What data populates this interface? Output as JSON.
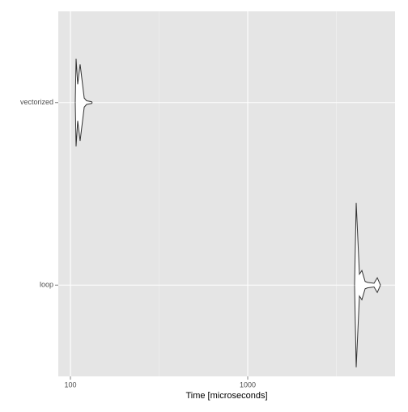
{
  "chart_data": {
    "type": "violin",
    "x_label": "Time [microseconds]",
    "log_x": true,
    "categories": [
      "vectorized",
      "loop"
    ],
    "xlim": [
      85.4,
      6776
    ],
    "xticks": [
      100,
      1000
    ],
    "xminorticks": [
      316.2,
      3162.3
    ],
    "grid": true,
    "series": [
      {
        "name": "vectorized",
        "x": [
          106.5,
          107.6,
          109.9,
          113.4,
          119.6,
          123.4,
          131.4,
          132.8
        ],
        "density": [
          0,
          0.24,
          0.1,
          0.21,
          0.025,
          0.01,
          0.005,
          0
        ]
      },
      {
        "name": "loop",
        "x": [
          4005,
          4091,
          4267,
          4404,
          4594,
          4740,
          5157,
          5379,
          5609
        ],
        "density": [
          0,
          0.45,
          0.06,
          0.08,
          0.02,
          0.015,
          0.01,
          0.04,
          0
        ]
      }
    ]
  }
}
